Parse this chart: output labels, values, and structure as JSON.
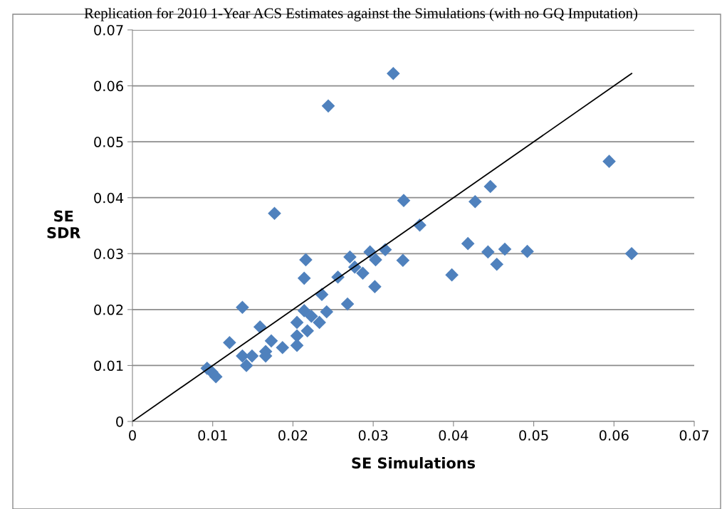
{
  "chart_data": {
    "type": "scatter",
    "title": "Replication for 2010 1-Year ACS Estimates against the Simulations (with no GQ Imputation)",
    "xlabel": "SE Simulations",
    "ylabel": "SE\nSDR",
    "series": [
      {
        "color": "#4f81bd",
        "marker": "diamond",
        "x": [
          0.0325,
          0.0244,
          0.0594,
          0.0446,
          0.0177,
          0.0338,
          0.0427,
          0.0358,
          0.0418,
          0.0622,
          0.0492,
          0.0464,
          0.0443,
          0.0454,
          0.0337,
          0.0216,
          0.0315,
          0.0296,
          0.0303,
          0.0271,
          0.0398,
          0.0214,
          0.0277,
          0.0287,
          0.0256,
          0.0302,
          0.0236,
          0.0268,
          0.0137,
          0.0214,
          0.0223,
          0.0242,
          0.0233,
          0.0205,
          0.0159,
          0.0218,
          0.0205,
          0.0121,
          0.0173,
          0.0187,
          0.0205,
          0.0137,
          0.0149,
          0.0166,
          0.0166,
          0.0142,
          0.0093,
          0.0099,
          0.0104
        ],
        "values": [
          0.0622,
          0.0564,
          0.0465,
          0.042,
          0.0372,
          0.0395,
          0.0393,
          0.0351,
          0.0318,
          0.03,
          0.0304,
          0.0308,
          0.0303,
          0.0281,
          0.0288,
          0.0289,
          0.0307,
          0.0303,
          0.0289,
          0.0294,
          0.0262,
          0.0256,
          0.0276,
          0.0265,
          0.0258,
          0.0241,
          0.0227,
          0.021,
          0.0204,
          0.0198,
          0.0188,
          0.0196,
          0.0177,
          0.0177,
          0.0169,
          0.0162,
          0.0153,
          0.0141,
          0.0144,
          0.0132,
          0.0136,
          0.0117,
          0.0117,
          0.0125,
          0.0117,
          0.01,
          0.0095,
          0.0088,
          0.008
        ]
      },
      {
        "type": "line",
        "color": "#000000",
        "marker": "none",
        "x": [
          0,
          0.0622
        ],
        "values": [
          0,
          0.0622
        ]
      }
    ],
    "xlim": [
      0,
      0.07
    ],
    "ylim": [
      0,
      0.07
    ],
    "xticks": [
      0,
      0.01,
      0.02,
      0.03,
      0.04,
      0.05,
      0.06,
      0.07
    ],
    "yticks": [
      0,
      0.01,
      0.02,
      0.03,
      0.04,
      0.05,
      0.06,
      0.07
    ],
    "grid": "y",
    "legend": false
  }
}
